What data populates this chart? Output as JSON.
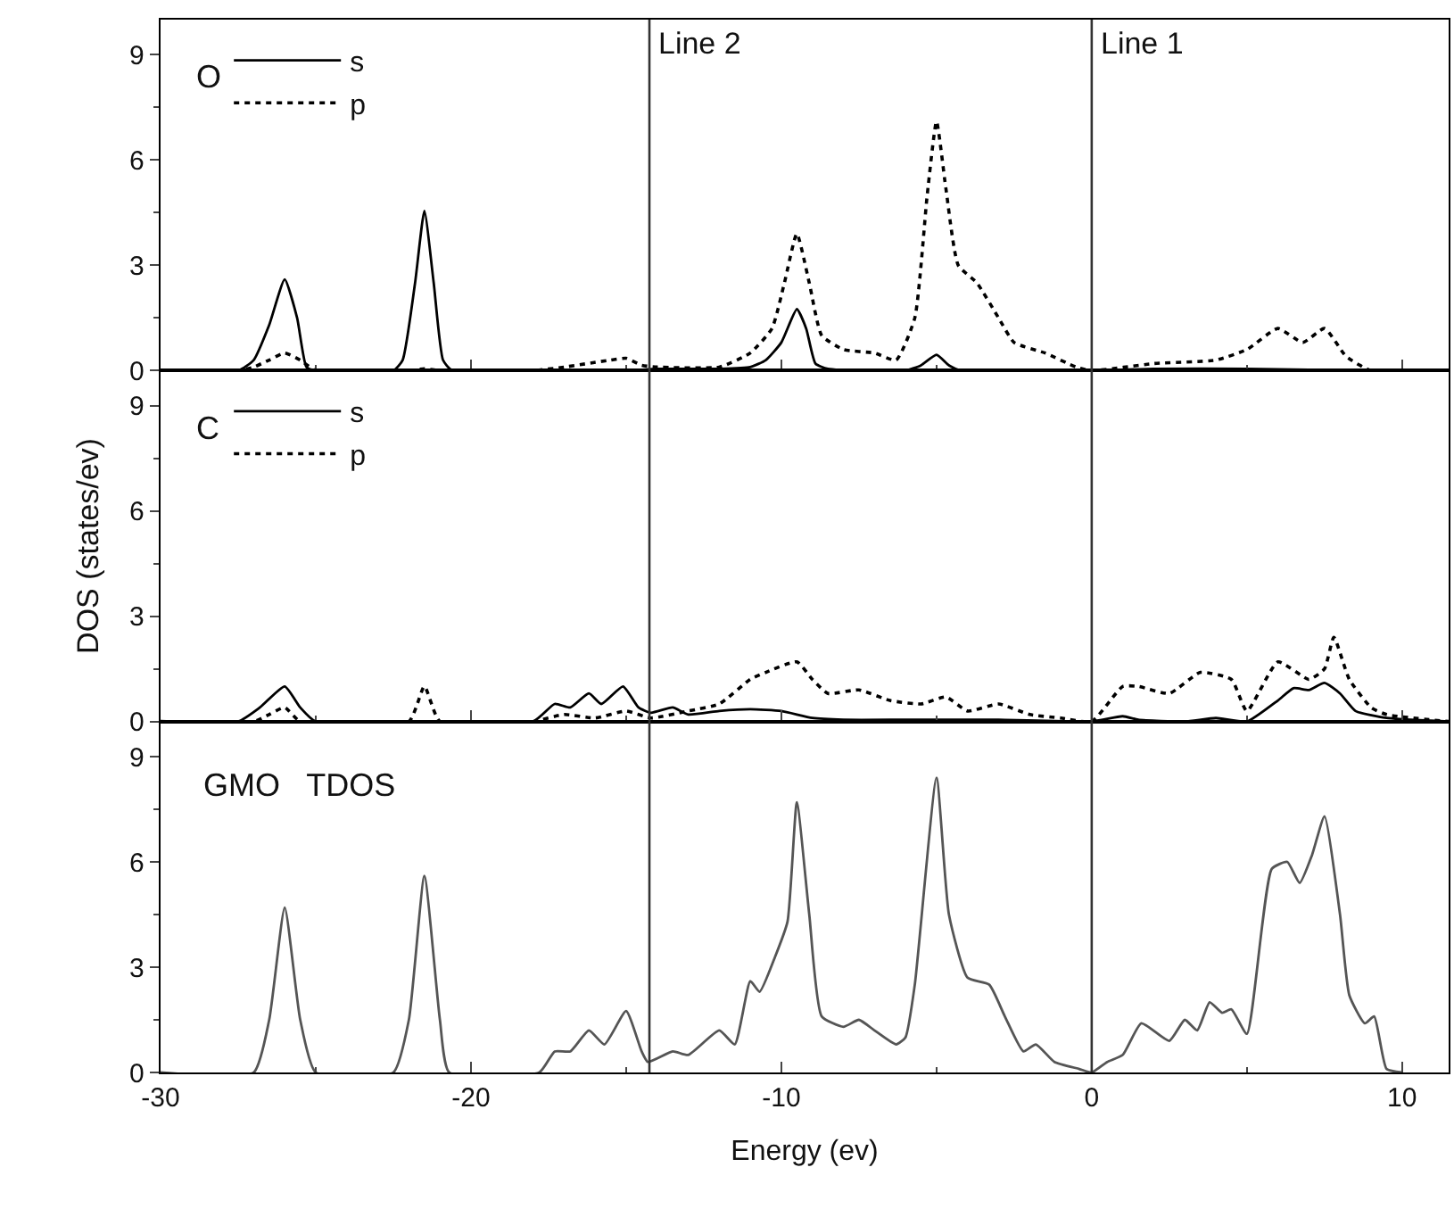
{
  "chart_data": [
    {
      "type": "line",
      "annotations": [
        "O"
      ],
      "xlim": [
        -30,
        11.5
      ],
      "xticks": [
        -30,
        -20,
        -10,
        0,
        10
      ],
      "ylim": [
        0,
        10
      ],
      "yticks": [
        0,
        3,
        6,
        9
      ],
      "tick_labels": "y",
      "legend": "top left",
      "grid": false,
      "ref_lines": [
        {
          "axis": "x",
          "value": -14.25,
          "label": "Line 2",
          "color": "#333333"
        },
        {
          "axis": "x",
          "value": 0,
          "label": "Line 1",
          "color": "#333333"
        }
      ],
      "series": [
        {
          "name": "s",
          "color": "#000000",
          "line_style": "solid",
          "x": [
            -30,
            -27.5,
            -27,
            -26.5,
            -26,
            -25.6,
            -25.3,
            -25,
            -22.5,
            -22.2,
            -21.8,
            -21.5,
            -21.2,
            -20.9,
            -20.6,
            -15,
            -14,
            -12,
            -11,
            -10.5,
            -10,
            -9.5,
            -9.2,
            -8.9,
            -8.5,
            -6,
            -5.5,
            -5,
            -4.6,
            -4.2,
            0,
            2,
            5,
            9,
            11.5
          ],
          "values": [
            0,
            0,
            0.3,
            1.3,
            2.6,
            1.5,
            0.1,
            0,
            0,
            0.3,
            2.5,
            4.55,
            2.5,
            0.3,
            0,
            0,
            0.05,
            0.05,
            0.1,
            0.3,
            0.8,
            1.75,
            1.2,
            0.2,
            0.05,
            0,
            0.15,
            0.45,
            0.15,
            0,
            0,
            0.05,
            0.05,
            0,
            0
          ]
        },
        {
          "name": "p",
          "color": "#000000",
          "line_style": "dotted",
          "x": [
            -30,
            -27.5,
            -27,
            -26.5,
            -26,
            -25.5,
            -25,
            -22,
            -21.5,
            -21,
            -18,
            -17,
            -15.5,
            -15,
            -14.5,
            -14,
            -12,
            -11,
            -10.3,
            -9.9,
            -9.5,
            -9.1,
            -8.7,
            -8,
            -7,
            -6.3,
            -5.7,
            -5.3,
            -5,
            -4.7,
            -4.3,
            -3.7,
            -3,
            -2.5,
            -1.5,
            -0.5,
            0,
            2,
            4,
            5,
            6,
            6.8,
            7.5,
            8.2,
            9,
            11.5
          ],
          "values": [
            0,
            0,
            0.1,
            0.3,
            0.5,
            0.3,
            0,
            0,
            0.05,
            0,
            0,
            0.1,
            0.3,
            0.35,
            0.15,
            0.1,
            0.1,
            0.5,
            1.2,
            2.5,
            3.9,
            2.5,
            1.0,
            0.6,
            0.5,
            0.3,
            1.5,
            5,
            7.1,
            5.2,
            3.0,
            2.5,
            1.5,
            0.8,
            0.5,
            0.1,
            0,
            0.2,
            0.3,
            0.6,
            1.2,
            0.8,
            1.2,
            0.4,
            0,
            0
          ]
        }
      ]
    },
    {
      "type": "line",
      "annotations": [
        "C"
      ],
      "ylabel": "DOS (states/ev)",
      "xlim": [
        -30,
        11.5
      ],
      "xticks": [
        -30,
        -20,
        -10,
        0,
        10
      ],
      "ylim": [
        0,
        10
      ],
      "yticks": [
        0,
        3,
        6,
        9
      ],
      "tick_labels": "y",
      "legend": "top left",
      "grid": false,
      "ref_lines": [
        {
          "axis": "x",
          "value": -14.25,
          "color": "#333333"
        },
        {
          "axis": "x",
          "value": 0,
          "color": "#333333"
        }
      ],
      "series": [
        {
          "name": "s",
          "color": "#000000",
          "line_style": "solid",
          "x": [
            -30,
            -27.5,
            -26.8,
            -26,
            -25.5,
            -25,
            -18,
            -17.3,
            -16.8,
            -16.2,
            -15.8,
            -15.1,
            -14.6,
            -14.2,
            -13.5,
            -13,
            -12,
            -11,
            -10,
            -9,
            -8,
            -6,
            -3,
            0,
            1,
            1.5,
            3,
            4,
            5,
            6,
            6.5,
            7,
            7.5,
            8,
            8.5,
            9.5,
            11.5
          ],
          "values": [
            0,
            0,
            0.4,
            1.0,
            0.4,
            0,
            0,
            0.5,
            0.4,
            0.8,
            0.5,
            1.0,
            0.4,
            0.25,
            0.4,
            0.2,
            0.3,
            0.35,
            0.3,
            0.1,
            0.05,
            0.05,
            0.05,
            0,
            0.15,
            0.05,
            0,
            0.1,
            0,
            0.6,
            0.95,
            0.9,
            1.1,
            0.8,
            0.3,
            0.1,
            0
          ]
        },
        {
          "name": "p",
          "color": "#000000",
          "line_style": "dotted",
          "x": [
            -30,
            -27,
            -26.5,
            -26,
            -25.5,
            -22,
            -21.5,
            -21,
            -18,
            -17,
            -16,
            -15,
            -14.2,
            -13,
            -12,
            -11,
            -10.5,
            -9.5,
            -9,
            -8.5,
            -7.5,
            -6.5,
            -5.5,
            -4.7,
            -4,
            -3,
            -2,
            -1,
            0,
            1,
            1.5,
            2.5,
            3.5,
            4.5,
            5,
            6,
            7,
            7.5,
            7.8,
            8.3,
            9,
            9.5,
            11.5
          ],
          "values": [
            0,
            0,
            0.2,
            0.4,
            0,
            0,
            1.0,
            0,
            0,
            0.2,
            0.1,
            0.3,
            0.1,
            0.3,
            0.5,
            1.2,
            1.4,
            1.7,
            1.2,
            0.8,
            0.9,
            0.6,
            0.5,
            0.7,
            0.3,
            0.5,
            0.2,
            0.1,
            0,
            1.0,
            1.0,
            0.8,
            1.4,
            1.2,
            0.3,
            1.7,
            1.2,
            1.5,
            2.4,
            1.2,
            0.4,
            0.2,
            0
          ]
        }
      ]
    },
    {
      "type": "line",
      "annotations": [
        "GMO   TDOS"
      ],
      "xlabel": "Energy (ev)",
      "xlim": [
        -30,
        11.5
      ],
      "xticks": [
        -30,
        -20,
        -10,
        0,
        10
      ],
      "ylim": [
        0,
        10
      ],
      "yticks": [
        0,
        3,
        6,
        9
      ],
      "grid": false,
      "ref_lines": [
        {
          "axis": "x",
          "value": -14.25,
          "color": "#333333"
        },
        {
          "axis": "x",
          "value": 0,
          "color": "#333333"
        }
      ],
      "series": [
        {
          "color": "#555555",
          "line_style": "solid",
          "x": [
            -30,
            -27,
            -26.5,
            -26,
            -25.5,
            -25,
            -22.5,
            -22,
            -21.5,
            -21,
            -20.7,
            -17.8,
            -17.3,
            -16.8,
            -16.2,
            -15.7,
            -15,
            -14.5,
            -14.3,
            -13.5,
            -13,
            -12,
            -11.5,
            -11,
            -10.7,
            -10.2,
            -9.8,
            -9.5,
            -9.1,
            -8.7,
            -8,
            -7.5,
            -7,
            -6.3,
            -6,
            -5.7,
            -5,
            -4.6,
            -4,
            -3.3,
            -2.8,
            -2.2,
            -1.8,
            -1.2,
            -0.4,
            0,
            0.5,
            1,
            1.6,
            2.5,
            3,
            3.4,
            3.8,
            4.2,
            4.5,
            5,
            5.8,
            6.3,
            6.7,
            7.1,
            7.5,
            8,
            8.3,
            8.8,
            9.1,
            9.5,
            10
          ],
          "values": [
            0,
            0,
            1.5,
            4.7,
            1.5,
            0,
            0,
            1.5,
            5.6,
            1.5,
            0,
            0,
            0.6,
            0.6,
            1.2,
            0.8,
            1.75,
            0.6,
            0.3,
            0.6,
            0.5,
            1.2,
            0.8,
            2.6,
            2.3,
            3.3,
            4.3,
            7.7,
            4.5,
            1.6,
            1.3,
            1.5,
            1.2,
            0.8,
            1.0,
            2.5,
            8.4,
            4.5,
            2.7,
            2.5,
            1.6,
            0.6,
            0.8,
            0.3,
            0.1,
            0,
            0.3,
            0.5,
            1.4,
            0.9,
            1.5,
            1.2,
            2.0,
            1.7,
            1.8,
            1.1,
            5.8,
            6.0,
            5.4,
            6.2,
            7.3,
            4.5,
            2.2,
            1.4,
            1.6,
            0.1,
            0
          ]
        }
      ]
    }
  ]
}
